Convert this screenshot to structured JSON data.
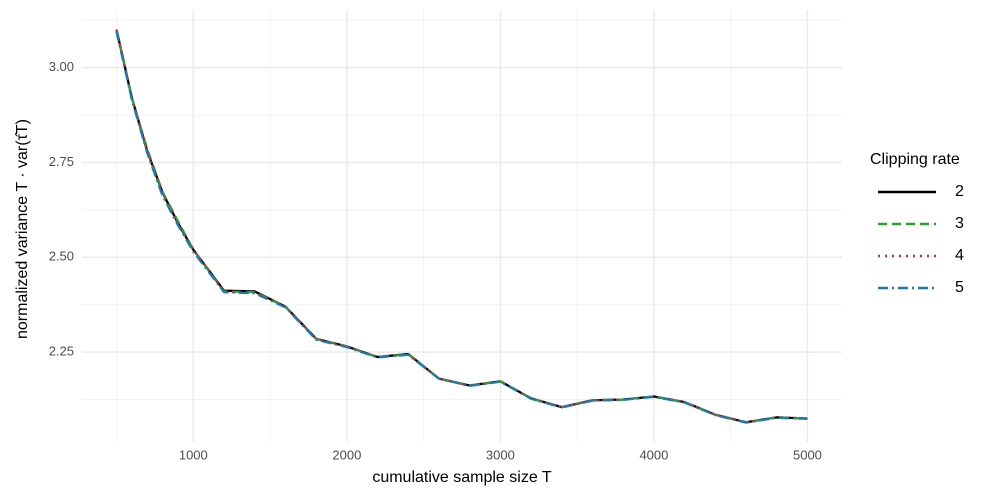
{
  "chart_data": {
    "type": "line",
    "x_label": "cumulative sample size T",
    "y_label": "normalized variance   T · var(τ̂T)",
    "legend_title": "Clipping rate",
    "legend_position": "right",
    "grid": true,
    "x": [
      500,
      600,
      700,
      800,
      900,
      1000,
      1200,
      1400,
      1600,
      1800,
      2000,
      2200,
      2400,
      2600,
      2800,
      3000,
      3200,
      3400,
      3600,
      3800,
      4000,
      4200,
      4400,
      4600,
      4800,
      5000
    ],
    "series": [
      {
        "name": "2",
        "color": "#000000",
        "dash": "solid",
        "values": [
          3.1,
          2.92,
          2.78,
          2.67,
          2.59,
          2.52,
          2.412,
          2.41,
          2.37,
          2.285,
          2.265,
          2.237,
          2.245,
          2.18,
          2.162,
          2.173,
          2.128,
          2.105,
          2.123,
          2.125,
          2.133,
          2.118,
          2.085,
          2.065,
          2.078,
          2.075
        ]
      },
      {
        "name": "3",
        "color": "#2ca02c",
        "dash": "dashed",
        "values": [
          3.1,
          2.92,
          2.785,
          2.672,
          2.595,
          2.52,
          2.41,
          2.408,
          2.37,
          2.285,
          2.265,
          2.237,
          2.244,
          2.18,
          2.162,
          2.173,
          2.128,
          2.105,
          2.123,
          2.125,
          2.133,
          2.118,
          2.085,
          2.065,
          2.078,
          2.075
        ]
      },
      {
        "name": "4",
        "color": "#d62728",
        "dash": "dotted",
        "values": [
          3.1,
          2.92,
          2.78,
          2.668,
          2.59,
          2.52,
          2.41,
          2.408,
          2.37,
          2.285,
          2.265,
          2.237,
          2.244,
          2.18,
          2.162,
          2.173,
          2.128,
          2.105,
          2.123,
          2.125,
          2.133,
          2.118,
          2.085,
          2.065,
          2.078,
          2.075
        ]
      },
      {
        "name": "5",
        "color": "#1f77b4",
        "dash": "dashdot",
        "values": [
          3.095,
          2.915,
          2.775,
          2.662,
          2.585,
          2.515,
          2.408,
          2.405,
          2.368,
          2.283,
          2.263,
          2.236,
          2.243,
          2.18,
          2.161,
          2.172,
          2.127,
          2.104,
          2.122,
          2.124,
          2.132,
          2.117,
          2.084,
          2.064,
          2.077,
          2.074
        ]
      }
    ],
    "xlim": [
      275,
      5225
    ],
    "xticks": [
      1000,
      2000,
      3000,
      4000,
      5000
    ],
    "xminorticks": [
      500,
      1500,
      2500,
      3500,
      4500
    ],
    "ylim": [
      2.013,
      3.152
    ],
    "yticks": [
      {
        "value": 2.25,
        "label": "2.25"
      },
      {
        "value": 2.5,
        "label": "2.50"
      },
      {
        "value": 2.75,
        "label": "2.75"
      },
      {
        "value": 3,
        "label": "3.00"
      }
    ],
    "yminorticks": [
      2.125,
      2.375,
      2.625,
      2.875,
      3.125
    ]
  }
}
